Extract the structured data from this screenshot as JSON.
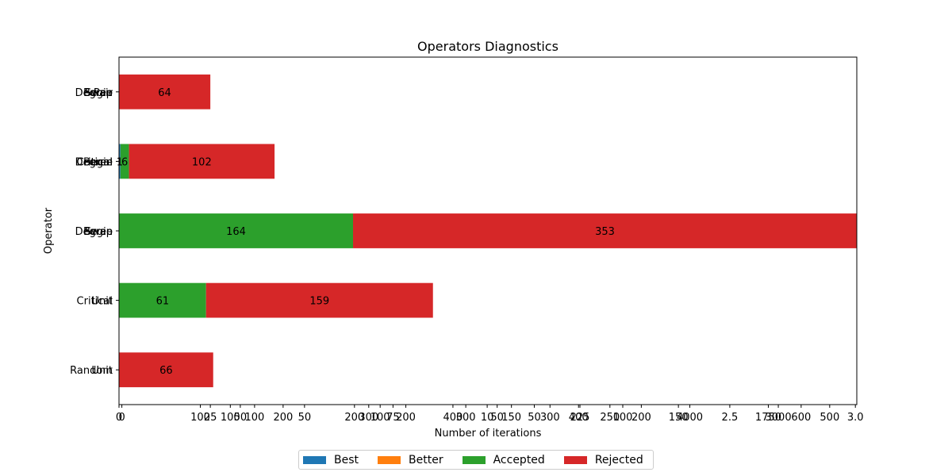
{
  "chart_data": {
    "type": "bar",
    "orientation": "horizontal",
    "stacked": true,
    "title": "Operators Diagnostics",
    "xlabel": "Number of iterations",
    "ylabel": "Operator",
    "xlim": [
      0,
      517
    ],
    "categories": [
      "Unit+Random",
      "Unit+Critical",
      "Degree+Swap",
      "Degree+Critical",
      "Begin+Swap"
    ],
    "y_tick_label_layers": [
      [
        "Unit",
        "Unit",
        "Degree",
        "Degree",
        "Begin"
      ],
      [
        "Random",
        "Critical",
        "Swap",
        "Critical",
        "Swap"
      ],
      [
        "",
        "",
        "Begin",
        "Begin",
        "Degree"
      ],
      [
        "",
        "",
        "",
        "Critical",
        "Pair"
      ]
    ],
    "series": [
      {
        "name": "Best",
        "color": "#1f77b4",
        "values": [
          0,
          0,
          0,
          1,
          0
        ]
      },
      {
        "name": "Better",
        "color": "#ff7f0e",
        "values": [
          0,
          0,
          0,
          0,
          0
        ]
      },
      {
        "name": "Accepted",
        "color": "#2ca02c",
        "values": [
          0,
          61,
          164,
          6,
          0
        ]
      },
      {
        "name": "Rejected",
        "color": "#d62728",
        "values": [
          66,
          159,
          353,
          102,
          64
        ]
      }
    ],
    "data_labels": [
      {
        "category": "Unit+Random",
        "series": "Rejected",
        "text": "66"
      },
      {
        "category": "Unit+Critical",
        "series": "Accepted",
        "text": "61"
      },
      {
        "category": "Unit+Critical",
        "series": "Rejected",
        "text": "159"
      },
      {
        "category": "Degree+Swap",
        "series": "Accepted",
        "text": "164"
      },
      {
        "category": "Degree+Swap",
        "series": "Rejected",
        "text": "353"
      },
      {
        "category": "Degree+Critical",
        "series": "Best",
        "text": "1"
      },
      {
        "category": "Degree+Critical",
        "series": "Accepted",
        "text": "6"
      },
      {
        "category": "Degree+Critical",
        "series": "Rejected",
        "text": "102"
      },
      {
        "category": "Begin+Swap",
        "series": "Rejected",
        "text": "64"
      }
    ],
    "x_tick_labels": [
      {
        "v": 0,
        "t": "0"
      },
      {
        "v": 2,
        "t": "0"
      },
      {
        "v": 57,
        "t": "100"
      },
      {
        "v": 64,
        "t": "25"
      },
      {
        "v": 78,
        "t": "100"
      },
      {
        "v": 85,
        "t": "50"
      },
      {
        "v": 95,
        "t": "100"
      },
      {
        "v": 115,
        "t": "200"
      },
      {
        "v": 130,
        "t": "50"
      },
      {
        "v": 165,
        "t": "200"
      },
      {
        "v": 175,
        "t": "300"
      },
      {
        "v": 183,
        "t": "100"
      },
      {
        "v": 192,
        "t": "75"
      },
      {
        "v": 201,
        "t": "200"
      },
      {
        "v": 234,
        "t": "400"
      },
      {
        "v": 243,
        "t": "300"
      },
      {
        "v": 258,
        "t": "10"
      },
      {
        "v": 265,
        "t": "50"
      },
      {
        "v": 275,
        "t": "150"
      },
      {
        "v": 291,
        "t": "50"
      },
      {
        "v": 302,
        "t": "300"
      },
      {
        "v": 322,
        "t": "400"
      },
      {
        "v": 323,
        "t": "225"
      },
      {
        "v": 344,
        "t": "250"
      },
      {
        "v": 353,
        "t": "100"
      },
      {
        "v": 366,
        "t": "200"
      },
      {
        "v": 392,
        "t": "150"
      },
      {
        "v": 400,
        "t": "4000"
      },
      {
        "v": 428,
        "t": "2.5"
      },
      {
        "v": 455,
        "t": "1750"
      },
      {
        "v": 462,
        "t": "3000"
      },
      {
        "v": 478,
        "t": "600"
      },
      {
        "v": 498,
        "t": "500"
      },
      {
        "v": 516,
        "t": "3.0"
      }
    ],
    "grid": false,
    "legend_position": "bottom-center"
  }
}
